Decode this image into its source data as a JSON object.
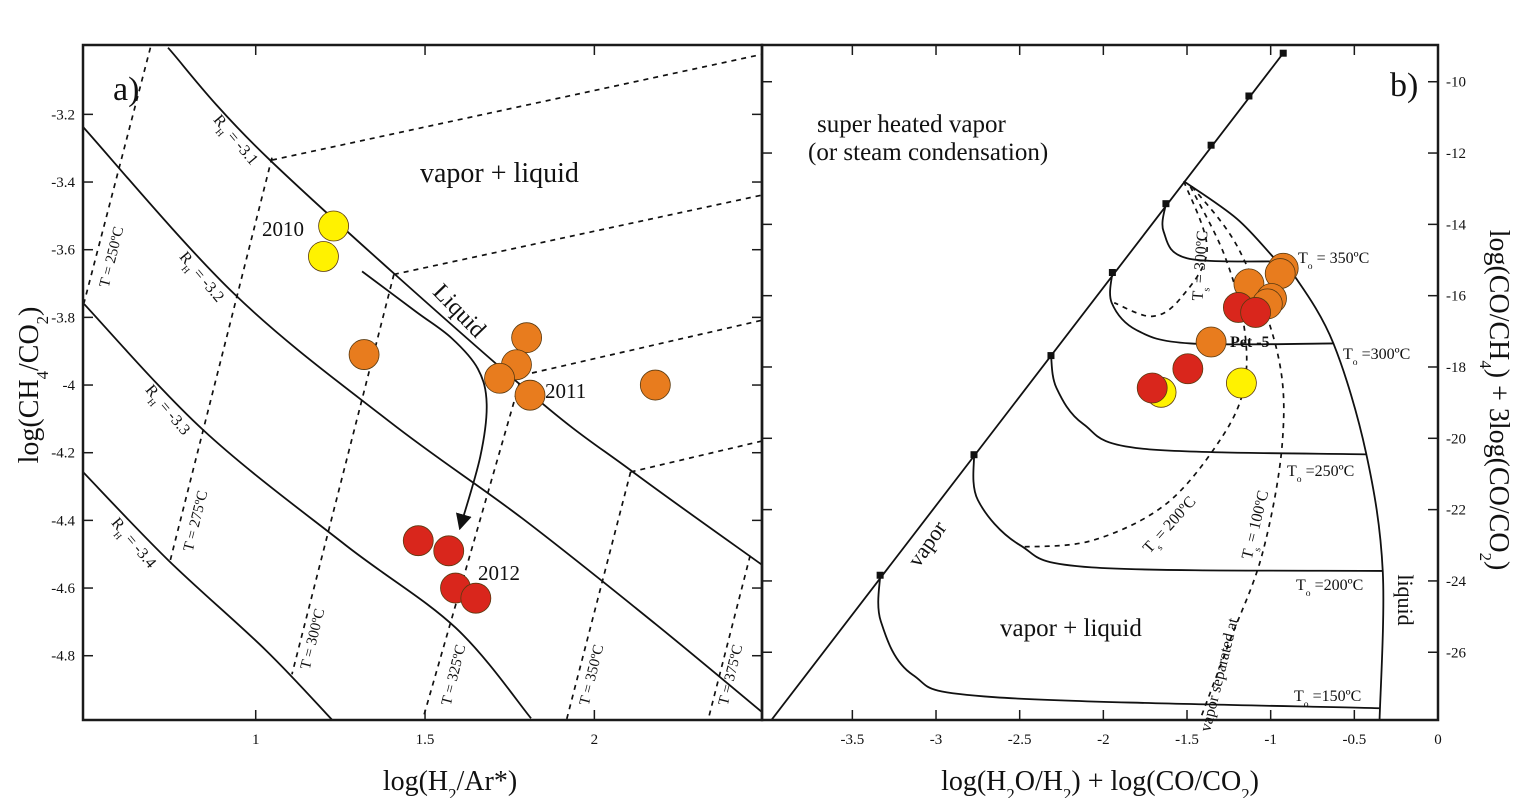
{
  "chart_data": [
    {
      "panel_label": "a)",
      "type": "scatter",
      "xlabel": [
        [
          "log(H",
          0
        ],
        [
          "2",
          1
        ],
        [
          "/Ar*)",
          0
        ]
      ],
      "ylabel": [
        [
          "log(CH",
          0
        ],
        [
          "4",
          1
        ],
        [
          "/CO",
          0
        ],
        [
          "2",
          1
        ],
        [
          ")",
          0
        ]
      ],
      "xlim": [
        0.49,
        2.495
      ],
      "ylim": [
        -4.99,
        -2.995
      ],
      "xticks": [
        1,
        1.5,
        2
      ],
      "xtick_labels": [
        "1",
        "1.5",
        "2"
      ],
      "yticks": [
        -3.2,
        -3.4,
        -3.6,
        -3.8,
        -4,
        -4.2,
        -4.4,
        -4.6,
        -4.8
      ],
      "ytick_labels": [
        "-3.2",
        "-3.4",
        "-3.6",
        "-3.8",
        "-4",
        "-4.2",
        "-4.4",
        "-4.6",
        "-4.8"
      ],
      "grid": false,
      "series": [
        {
          "name": "2010",
          "color": "#fff200",
          "points": [
            [
              1.23,
              -3.53
            ],
            [
              1.2,
              -3.62
            ]
          ]
        },
        {
          "name": "2011",
          "color": "#e87c1e",
          "points": [
            [
              1.32,
              -3.91
            ],
            [
              1.8,
              -3.86
            ],
            [
              1.77,
              -3.94
            ],
            [
              1.72,
              -3.98
            ],
            [
              1.81,
              -4.03
            ],
            [
              2.18,
              -4.0
            ]
          ]
        },
        {
          "name": "2012",
          "color": "#d9261c",
          "points": [
            [
              1.48,
              -4.46
            ],
            [
              1.57,
              -4.49
            ],
            [
              1.59,
              -4.6
            ],
            [
              1.65,
              -4.63
            ]
          ]
        }
      ],
      "curves": [
        {
          "id": "rh-3.1",
          "style": "solid",
          "points": [
            [
              0.741,
              -3.003
            ],
            [
              1.042,
              -3.335
            ],
            [
              1.787,
              -4.004
            ],
            [
              2.114,
              -4.257
            ],
            [
              2.493,
              -4.53
            ]
          ]
        },
        {
          "id": "rh-3.2",
          "style": "solid",
          "points": [
            [
              0.49,
              -3.237
            ],
            [
              0.937,
              -3.731
            ],
            [
              1.395,
              -4.108
            ],
            [
              1.787,
              -4.394
            ],
            [
              2.179,
              -4.705
            ],
            [
              2.493,
              -4.965
            ]
          ]
        },
        {
          "id": "rh-3.3",
          "style": "solid",
          "points": [
            [
              0.49,
              -3.757
            ],
            [
              0.846,
              -4.134
            ],
            [
              1.264,
              -4.472
            ],
            [
              1.591,
              -4.718
            ],
            [
              1.813,
              -4.985
            ]
          ]
        },
        {
          "id": "rh-3.4",
          "style": "solid",
          "points": [
            [
              0.49,
              -4.257
            ],
            [
              0.741,
              -4.517
            ],
            [
              1.029,
              -4.783
            ],
            [
              1.225,
              -4.989
            ]
          ]
        },
        {
          "id": "t-250",
          "style": "dashed",
          "points": [
            [
              0.689,
              -3.003
            ],
            [
              0.493,
              -3.757
            ]
          ]
        },
        {
          "id": "t-275",
          "style": "dashed",
          "points": [
            [
              1.048,
              -3.328
            ],
            [
              0.748,
              -4.517
            ]
          ]
        },
        {
          "id": "t-300",
          "style": "dashed",
          "points": [
            [
              1.408,
              -3.673
            ],
            [
              1.107,
              -4.855
            ]
          ]
        },
        {
          "id": "t-325",
          "style": "dashed",
          "points": [
            [
              1.787,
              -3.965
            ],
            [
              1.493,
              -4.989
            ]
          ]
        },
        {
          "id": "t-350",
          "style": "dashed",
          "points": [
            [
              2.107,
              -4.257
            ],
            [
              1.918,
              -4.989
            ]
          ]
        },
        {
          "id": "t-375",
          "style": "dashed",
          "points": [
            [
              2.46,
              -4.504
            ],
            [
              2.336,
              -4.989
            ]
          ]
        },
        {
          "id": "vl-1",
          "style": "dashed",
          "points": [
            [
              1.048,
              -3.335
            ],
            [
              2.493,
              -3.023
            ]
          ]
        },
        {
          "id": "vl-2",
          "style": "dashed",
          "points": [
            [
              1.408,
              -3.673
            ],
            [
              2.493,
              -3.439
            ]
          ]
        },
        {
          "id": "vl-3",
          "style": "dashed",
          "points": [
            [
              1.787,
              -3.971
            ],
            [
              2.493,
              -3.809
            ]
          ]
        },
        {
          "id": "vl-4",
          "style": "dashed",
          "points": [
            [
              2.107,
              -4.257
            ],
            [
              2.493,
              -4.166
            ]
          ]
        },
        {
          "id": "trend-arrow",
          "style": "arrow",
          "points": [
            [
              1.314,
              -3.664
            ],
            [
              1.473,
              -3.783
            ],
            [
              1.578,
              -3.861
            ],
            [
              1.656,
              -3.952
            ],
            [
              1.682,
              -4.056
            ],
            [
              1.663,
              -4.212
            ],
            [
              1.604,
              -4.42
            ]
          ]
        }
      ],
      "annotations": {
        "vapor_liquid": "vapor + liquid",
        "liquid": "Liquid",
        "year_2010": "2010",
        "year_2011": "2011",
        "year_2012": "2012",
        "rh_31": [
          [
            "R",
            0
          ],
          [
            "H",
            1
          ],
          [
            " = -3.1",
            0
          ]
        ],
        "rh_32": [
          [
            "R",
            0
          ],
          [
            "H",
            1
          ],
          [
            " = -3.2",
            0
          ]
        ],
        "rh_33": [
          [
            "R",
            0
          ],
          [
            "H",
            1
          ],
          [
            " = -3.3",
            0
          ]
        ],
        "rh_34": [
          [
            "R",
            0
          ],
          [
            "H",
            1
          ],
          [
            " = -3.4",
            0
          ]
        ],
        "t_250": "T = 250ºC",
        "t_275": "T = 275ºC",
        "t_300": "T = 300ºC",
        "t_325": "T = 325ºC",
        "t_350": "T = 350ºC",
        "t_375": "T = 375ºC"
      }
    },
    {
      "panel_label": "b)",
      "type": "scatter",
      "xlabel": [
        [
          "log(H",
          0
        ],
        [
          "2",
          1
        ],
        [
          "O/H",
          0
        ],
        [
          "2",
          1
        ],
        [
          ") + log(CO/CO",
          0
        ],
        [
          "2",
          1
        ],
        [
          ")",
          0
        ]
      ],
      "ylabel": [
        [
          "log(CO/CH",
          0
        ],
        [
          "4",
          1
        ],
        [
          ") + 3log(CO/CO",
          0
        ],
        [
          "2",
          1
        ],
        [
          ")",
          0
        ]
      ],
      "xlim": [
        -4.04,
        0
      ],
      "ylim": [
        -27.9,
        -8.97
      ],
      "xticks": [
        -3.5,
        -3,
        -2.5,
        -2,
        -1.5,
        -1,
        -0.5,
        0
      ],
      "xtick_labels": [
        "-3.5",
        "-3",
        "-2.5",
        "-2",
        "-1.5",
        "-1",
        "-0.5",
        "0"
      ],
      "yticks": [
        -10,
        -12,
        -14,
        -16,
        -18,
        -20,
        -22,
        -24,
        -26
      ],
      "ytick_labels": [
        "-10",
        "-12",
        "-14",
        "-16",
        "-18",
        "-20",
        "-22",
        "-24",
        "-26"
      ],
      "y_axis_side": "right",
      "grid": false,
      "series": [
        {
          "color": "#e87c1e",
          "points": [
            [
              -0.925,
              -15.23
            ],
            [
              -0.943,
              -15.38
            ],
            [
              -1.13,
              -15.67
            ],
            [
              -0.995,
              -16.08
            ],
            [
              -1.02,
              -16.23
            ],
            [
              -1.356,
              -17.3
            ]
          ]
        },
        {
          "color": "#fff200",
          "points": [
            [
              -1.655,
              -18.71
            ],
            [
              -1.175,
              -18.45
            ]
          ]
        },
        {
          "color": "#d9261c",
          "points": [
            [
              -1.193,
              -16.33
            ],
            [
              -1.09,
              -16.47
            ],
            [
              -1.495,
              -18.05
            ],
            [
              -1.708,
              -18.59
            ]
          ]
        }
      ],
      "vapor_markers": [
        [
          -0.925,
          -9.2
        ],
        [
          -1.13,
          -10.4
        ],
        [
          -1.356,
          -11.78
        ],
        [
          -1.626,
          -13.42
        ],
        [
          -1.946,
          -15.35
        ],
        [
          -2.313,
          -17.68
        ],
        [
          -2.773,
          -20.46
        ],
        [
          -3.334,
          -23.84
        ]
      ],
      "curves": [
        {
          "id": "vapor-boundary",
          "style": "solid",
          "points": [
            [
              -4.0,
              -28.0
            ],
            [
              -0.925,
              -9.2
            ]
          ]
        },
        {
          "id": "liquid-boundary",
          "style": "solid",
          "points": [
            [
              -1.519,
              -12.79
            ],
            [
              -1.2,
              -13.85
            ],
            [
              -0.96,
              -15.04
            ],
            [
              -0.85,
              -15.5
            ],
            [
              -0.625,
              -17.34
            ],
            [
              -0.43,
              -20.41
            ],
            [
              -0.33,
              -23.74
            ],
            [
              -0.35,
              -28.0
            ]
          ]
        },
        {
          "id": "to-350",
          "style": "solid",
          "points": [
            [
              -1.626,
              -13.42
            ],
            [
              -1.64,
              -14.2
            ],
            [
              -1.5,
              -14.95
            ],
            [
              -0.925,
              -15.04
            ]
          ]
        },
        {
          "id": "to-300",
          "style": "solid",
          "points": [
            [
              -1.946,
              -15.35
            ],
            [
              -1.95,
              -16.2
            ],
            [
              -1.8,
              -16.97
            ],
            [
              -1.48,
              -17.34
            ],
            [
              -0.625,
              -17.34
            ]
          ]
        },
        {
          "id": "to-250",
          "style": "solid",
          "points": [
            [
              -2.313,
              -17.68
            ],
            [
              -2.28,
              -18.59
            ],
            [
              -2.12,
              -19.6
            ],
            [
              -1.77,
              -20.29
            ],
            [
              -0.43,
              -20.45
            ]
          ]
        },
        {
          "id": "to-200",
          "style": "solid",
          "points": [
            [
              -2.773,
              -20.46
            ],
            [
              -2.75,
              -21.73
            ],
            [
              -2.5,
              -22.99
            ],
            [
              -2.07,
              -23.62
            ],
            [
              -0.33,
              -23.72
            ]
          ]
        },
        {
          "id": "to-150",
          "style": "solid",
          "points": [
            [
              -3.334,
              -23.84
            ],
            [
              -3.33,
              -25.13
            ],
            [
              -3.14,
              -26.63
            ],
            [
              -2.65,
              -27.26
            ],
            [
              -0.35,
              -27.57
            ]
          ]
        },
        {
          "id": "ts-300",
          "style": "dashed",
          "points": [
            [
              -1.519,
              -12.79
            ],
            [
              -1.38,
              -14.7
            ],
            [
              -1.54,
              -16.08
            ],
            [
              -1.71,
              -16.58
            ],
            [
              -1.935,
              -16.2
            ]
          ]
        },
        {
          "id": "ts-200",
          "style": "dashed",
          "points": [
            [
              -1.48,
              -12.94
            ],
            [
              -1.28,
              -14.82
            ],
            [
              -1.16,
              -16.83
            ],
            [
              -1.16,
              -18.59
            ],
            [
              -1.31,
              -20.1
            ],
            [
              -1.63,
              -21.86
            ],
            [
              -2.07,
              -22.87
            ],
            [
              -2.5,
              -23.05
            ]
          ]
        },
        {
          "id": "ts-100",
          "style": "dashed",
          "points": [
            [
              -1.47,
              -12.94
            ],
            [
              -1.19,
              -14.7
            ],
            [
              -0.96,
              -17.59
            ],
            [
              -0.93,
              -20.1
            ],
            [
              -1.05,
              -23.24
            ],
            [
              -1.25,
              -25.75
            ],
            [
              -1.455,
              -28.3
            ]
          ]
        }
      ],
      "annotations": {
        "superheated_1": "super heated vapor",
        "superheated_2": "(or steam condensation)",
        "to_350": [
          [
            "T",
            0
          ],
          [
            "o",
            1
          ],
          [
            " = 350ºC",
            0
          ]
        ],
        "to_300": [
          [
            "T",
            0
          ],
          [
            "o",
            1
          ],
          [
            " =300ºC",
            0
          ]
        ],
        "to_250": [
          [
            "T",
            0
          ],
          [
            "o",
            1
          ],
          [
            " =250ºC",
            0
          ]
        ],
        "to_200": [
          [
            "T",
            0
          ],
          [
            "o",
            1
          ],
          [
            " =200ºC",
            0
          ]
        ],
        "to_150": [
          [
            "T",
            0
          ],
          [
            "o",
            1
          ],
          [
            " =150ºC",
            0
          ]
        ],
        "ts_300": [
          [
            "T",
            0
          ],
          [
            "s",
            1
          ],
          [
            " = 300ºC",
            0
          ]
        ],
        "ts_200": [
          [
            "T",
            0
          ],
          [
            "s",
            1
          ],
          [
            " = 200ºC",
            0
          ]
        ],
        "ts_100": [
          [
            "T",
            0
          ],
          [
            "s",
            1
          ],
          [
            " = 100ºC",
            0
          ]
        ],
        "vapor_separated": "vapor separated at",
        "pet5": "Pet -5",
        "liquid": "liquid",
        "vapor": "vapor",
        "vapor_liquid": "vapor + liquid"
      }
    }
  ]
}
